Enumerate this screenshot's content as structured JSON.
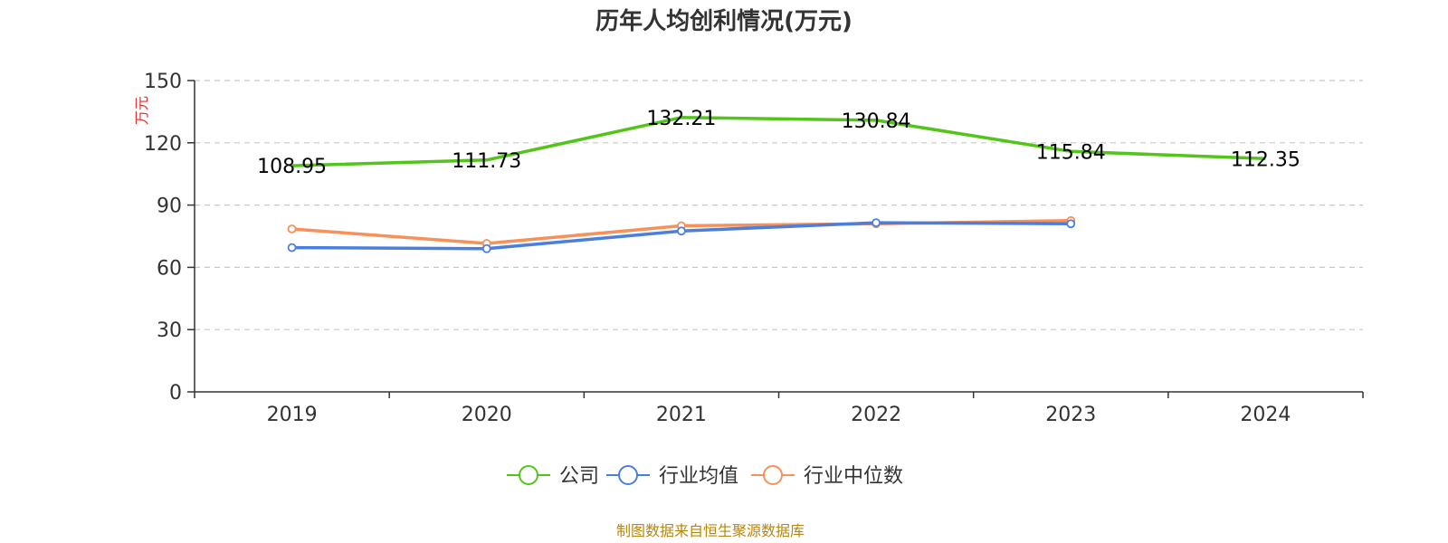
{
  "chart_data": {
    "type": "line",
    "title": "历年人均创利情况(万元)",
    "ylabel": "万元",
    "categories": [
      "2019",
      "2020",
      "2021",
      "2022",
      "2023",
      "2024"
    ],
    "ylim": [
      0,
      150
    ],
    "yticks": [
      0,
      30,
      60,
      90,
      120,
      150
    ],
    "grid": true,
    "legend_position": "bottom",
    "series": [
      {
        "name": "公司",
        "color": "#52c41a",
        "values": [
          108.95,
          111.73,
          132.21,
          130.84,
          115.84,
          112.35
        ],
        "labels": [
          "108.95",
          "111.73",
          "132.21",
          "130.84",
          "115.84",
          "112.35"
        ],
        "markers": false
      },
      {
        "name": "行业均值",
        "color": "#4a7fe0",
        "values": [
          69.5,
          69.0,
          77.5,
          81.5,
          81.0,
          null
        ],
        "markers": true
      },
      {
        "name": "行业中位数",
        "color": "#f79059",
        "values": [
          78.5,
          71.5,
          80.0,
          81.0,
          82.5,
          null
        ],
        "markers": true
      }
    ]
  },
  "source": "制图数据来自恒生聚源数据库"
}
